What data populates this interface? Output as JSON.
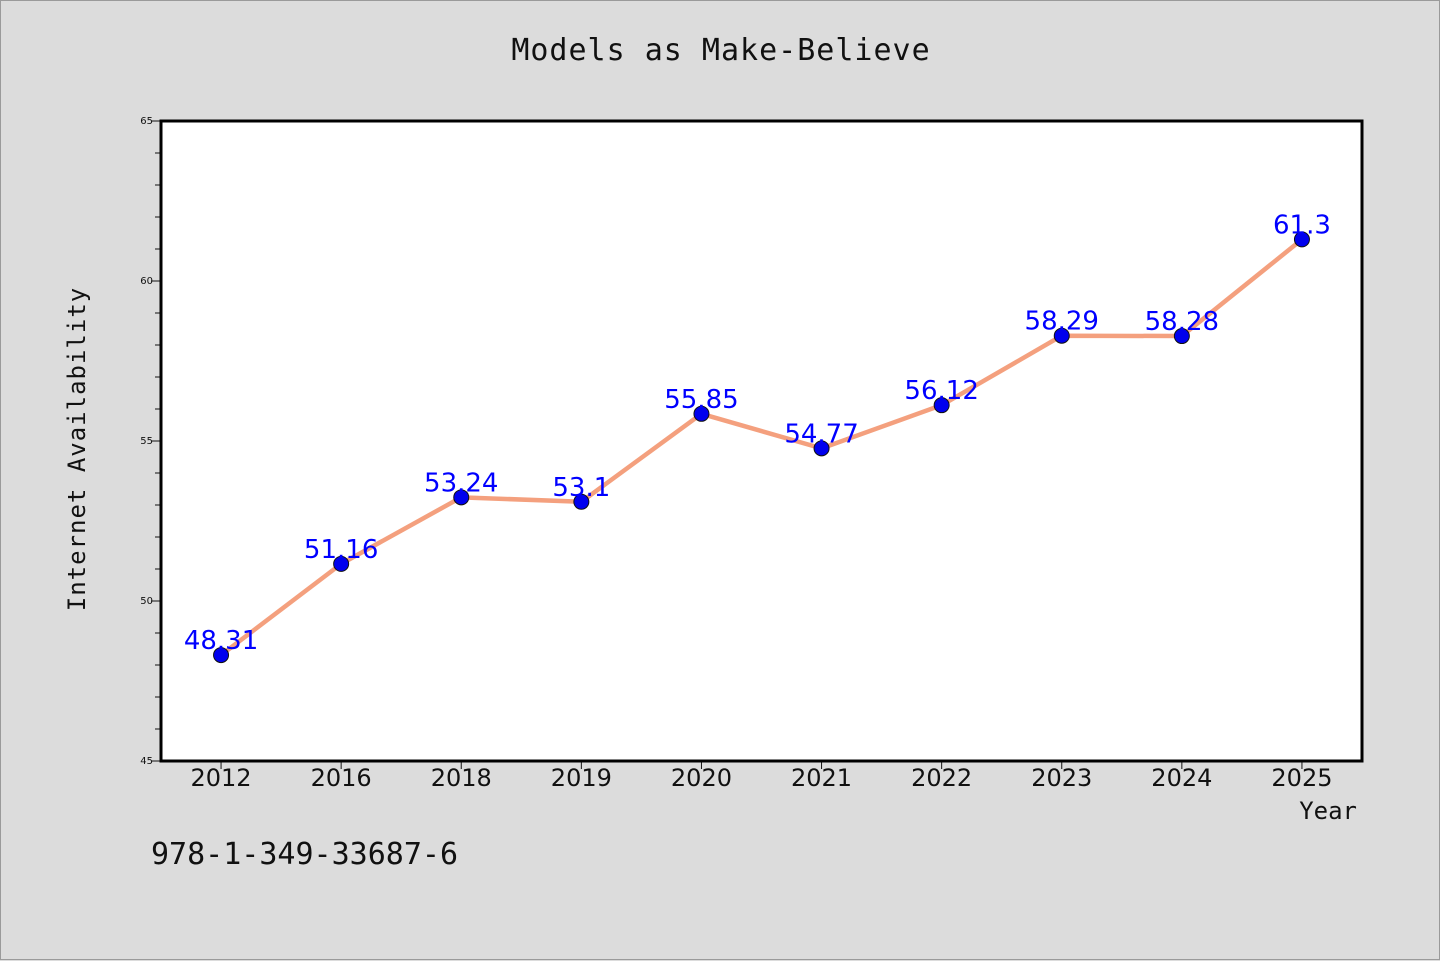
{
  "title": "Models as Make-Believe",
  "isbn": "978-1-349-33687-6",
  "colors": {
    "background": "#dcdcdc",
    "plot_background": "#ffffff",
    "line": "#f4a07e",
    "marker": "#0000ee",
    "data_label": "#0000ff"
  },
  "chart_data": {
    "type": "line",
    "categories": [
      "2012",
      "2016",
      "2018",
      "2019",
      "2020",
      "2021",
      "2022",
      "2023",
      "2024",
      "2025"
    ],
    "values": [
      48.31,
      51.16,
      53.24,
      53.1,
      55.85,
      54.77,
      56.12,
      58.29,
      58.28,
      61.3
    ],
    "data_labels": [
      "48.31",
      "51.16",
      "53.24",
      "53.1",
      "55.85",
      "54.77",
      "56.12",
      "58.29",
      "58.28",
      "61.3"
    ],
    "xlabel": "Year",
    "ylabel": "Internet Availability",
    "ylim": [
      45,
      65
    ],
    "yticks": [
      45,
      50,
      55,
      60,
      65
    ],
    "yminor_step": 1,
    "grid": false,
    "legend": "none"
  }
}
